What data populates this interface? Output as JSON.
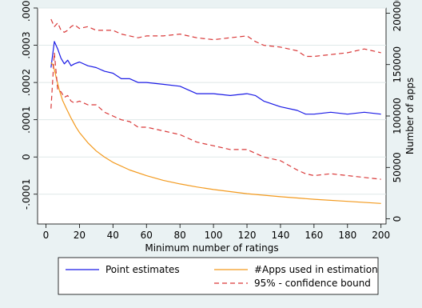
{
  "chart_data": {
    "type": "line",
    "xlabel": "Minimum number of ratings",
    "ylabel_left": "",
    "ylabel_right": "Number of apps",
    "xlim": [
      -5,
      203
    ],
    "ylim_left": [
      -0.00018,
      0.0004
    ],
    "ylim_right": [
      -5000,
      205000
    ],
    "x_ticks": [
      0,
      20,
      40,
      60,
      80,
      100,
      120,
      140,
      160,
      180,
      200
    ],
    "x_tick_labels": [
      "0",
      "20",
      "40",
      "60",
      "80",
      "100",
      "120",
      "140",
      "160",
      "180",
      "200"
    ],
    "y_left_ticks": [
      -0.0001,
      0,
      0.0001,
      0.0002,
      0.0003,
      0.0004
    ],
    "y_left_tick_labels": [
      "-.0001",
      "0",
      ".0001",
      ".0002",
      ".0003",
      ".0004"
    ],
    "y_right_ticks": [
      0,
      50000,
      100000,
      150000,
      200000
    ],
    "y_right_tick_labels": [
      "0",
      "50000",
      "100000",
      "150000",
      "200000"
    ],
    "legend_position": "bottom",
    "series": [
      {
        "name": "Point estimates",
        "axis": "left",
        "color": "#1a1ae6",
        "style": "solid",
        "x": [
          3,
          5,
          7,
          9,
          11,
          13,
          15,
          17,
          20,
          25,
          30,
          35,
          40,
          45,
          50,
          55,
          60,
          70,
          80,
          90,
          100,
          110,
          120,
          125,
          130,
          140,
          150,
          155,
          160,
          170,
          180,
          190,
          200
        ],
        "y": [
          0.00024,
          0.00031,
          0.00029,
          0.000265,
          0.00025,
          0.00026,
          0.000245,
          0.00025,
          0.000255,
          0.000245,
          0.00024,
          0.00023,
          0.000225,
          0.00021,
          0.00021,
          0.0002,
          0.0002,
          0.000195,
          0.00019,
          0.00017,
          0.00017,
          0.000165,
          0.00017,
          0.000165,
          0.00015,
          0.000135,
          0.000125,
          0.000115,
          0.000115,
          0.00012,
          0.000115,
          0.00012,
          0.000115
        ]
      },
      {
        "name": "#Apps used in estimation",
        "axis": "right",
        "color": "#f39a1e",
        "style": "solid",
        "x": [
          3,
          4,
          5,
          6,
          8,
          10,
          12,
          15,
          18,
          20,
          25,
          30,
          35,
          40,
          50,
          60,
          70,
          80,
          90,
          100,
          120,
          140,
          160,
          180,
          200
        ],
        "y": [
          152000,
          150000,
          145000,
          138000,
          125000,
          115000,
          108000,
          98000,
          89000,
          84000,
          74000,
          66000,
          60000,
          55000,
          47500,
          42000,
          37500,
          34000,
          31000,
          28500,
          24500,
          21500,
          19000,
          17000,
          15000
        ]
      },
      {
        "name": "95% - confidence bound",
        "axis": "left",
        "color": "#d93838",
        "style": "dashed",
        "x": [
          3,
          5,
          7,
          9,
          11,
          13,
          15,
          17,
          20,
          25,
          30,
          35,
          40,
          45,
          50,
          55,
          60,
          70,
          80,
          90,
          100,
          110,
          120,
          125,
          130,
          140,
          150,
          155,
          160,
          170,
          180,
          190,
          200
        ],
        "y": [
          0.00037,
          0.00035,
          0.00036,
          0.00034,
          0.000335,
          0.00034,
          0.00035,
          0.000355,
          0.000345,
          0.00035,
          0.00034,
          0.00034,
          0.00034,
          0.00033,
          0.000325,
          0.00032,
          0.000325,
          0.000325,
          0.00033,
          0.00032,
          0.000315,
          0.00032,
          0.000325,
          0.00031,
          0.0003,
          0.000295,
          0.000285,
          0.00027,
          0.00027,
          0.000275,
          0.00028,
          0.00029,
          0.00028
        ]
      },
      {
        "name": "",
        "axis": "left",
        "color": "#d93838",
        "style": "dashed",
        "x": [
          3,
          5,
          7,
          9,
          11,
          13,
          15,
          17,
          20,
          25,
          30,
          35,
          40,
          45,
          50,
          55,
          60,
          70,
          80,
          90,
          100,
          110,
          120,
          125,
          130,
          140,
          150,
          155,
          160,
          170,
          180,
          190,
          200
        ],
        "y": [
          0.00013,
          0.00028,
          0.00018,
          0.000175,
          0.00016,
          0.000165,
          0.00015,
          0.000145,
          0.00015,
          0.00014,
          0.00014,
          0.00012,
          0.00011,
          0.0001,
          9.5e-05,
          8e-05,
          8e-05,
          7e-05,
          6e-05,
          4e-05,
          3e-05,
          2e-05,
          2e-05,
          1e-05,
          0.0,
          -1e-05,
          -3.5e-05,
          -4.5e-05,
          -5e-05,
          -4.5e-05,
          -5e-05,
          -5.5e-05,
          -6e-05
        ]
      }
    ],
    "legend": [
      {
        "label": "Point estimates",
        "color": "#1a1ae6",
        "style": "solid"
      },
      {
        "label": "#Apps used in estimation",
        "color": "#f39a1e",
        "style": "solid"
      },
      {
        "label": "95% - confidence bound",
        "color": "#d93838",
        "style": "dashed"
      }
    ]
  }
}
